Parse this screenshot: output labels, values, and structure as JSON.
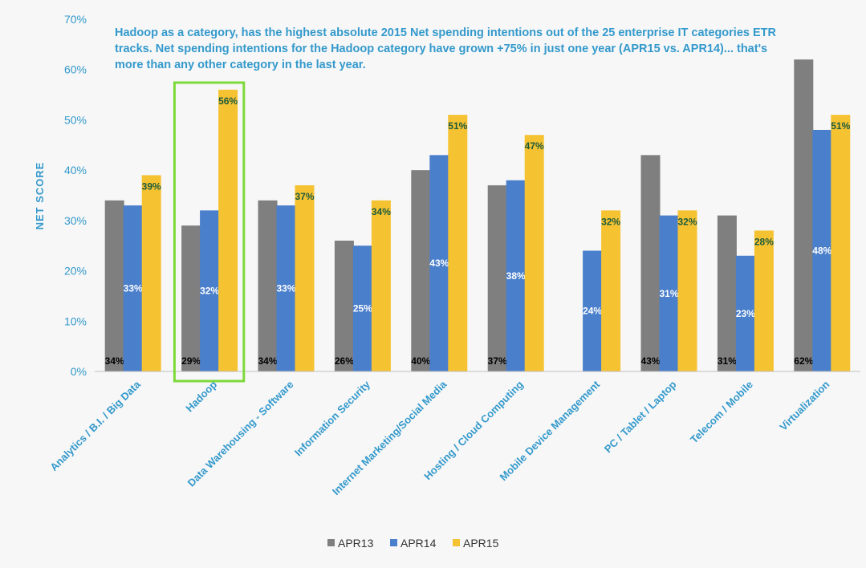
{
  "chart_data": {
    "type": "bar",
    "ylabel": "NET SCORE",
    "ylim": [
      0,
      70
    ],
    "yticks": [
      "0%",
      "10%",
      "20%",
      "30%",
      "40%",
      "50%",
      "60%",
      "70%"
    ],
    "grid": false,
    "legend_position": "bottom",
    "categories": [
      "Analytics / B.I. / Big Data",
      "Hadoop",
      "Data Warehousing - Software",
      "Information Security",
      "Internet Marketing/Social Media",
      "Hosting / Cloud Computing",
      "Mobile Device Management",
      "PC / Tablet / Laptop",
      "Telecom / Mobile",
      "Virtualization"
    ],
    "series": [
      {
        "name": "APR13",
        "color": "#7f7f7f",
        "values": [
          34,
          29,
          34,
          26,
          40,
          37,
          null,
          43,
          31,
          62
        ],
        "labels": [
          "34%",
          "29%",
          "34%",
          "26%",
          "40%",
          "37%",
          "",
          "43%",
          "31%",
          "62%"
        ]
      },
      {
        "name": "APR14",
        "color": "#4a7fcb",
        "values": [
          33,
          32,
          33,
          25,
          43,
          38,
          24,
          31,
          23,
          48
        ],
        "labels": [
          "33%",
          "32%",
          "33%",
          "25%",
          "43%",
          "38%",
          "24%",
          "31%",
          "23%",
          "48%"
        ]
      },
      {
        "name": "APR15",
        "color": "#f5c232",
        "values": [
          39,
          56,
          37,
          34,
          51,
          47,
          32,
          32,
          28,
          51
        ],
        "labels": [
          "39%",
          "56%",
          "37%",
          "34%",
          "51%",
          "47%",
          "32%",
          "32%",
          "28%",
          "51%"
        ]
      }
    ],
    "annotation": "Hadoop as a category, has the highest absolute 2015 Net spending intentions out of the 25 enterprise IT categories ETR tracks.  Net spending intentions for the Hadoop category have grown +75% in just one year (APR15 vs. APR14)... that's more than any other category in the last year.",
    "highlight_color": "#7ed93a"
  }
}
